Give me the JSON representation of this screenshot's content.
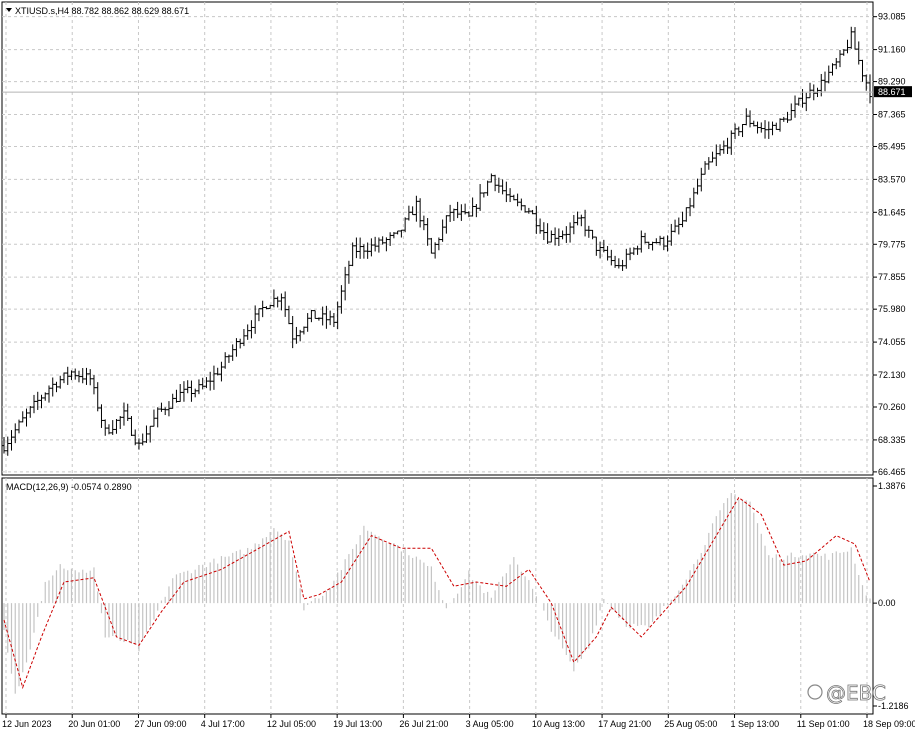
{
  "chart_data": [
    {
      "type": "candlestick",
      "title": "XTIUSD.s,H4  88.782 88.862 88.629 88.671",
      "symbol": "XTIUSD.s,H4",
      "ohlc_last": {
        "open": "88.782",
        "high": "88.862",
        "low": "88.629",
        "close": "88.671"
      },
      "current_price": "88.671",
      "ylim": [
        66.4,
        93.3
      ],
      "y_ticks": [
        "93.085",
        "91.160",
        "89.290",
        "87.365",
        "85.495",
        "83.570",
        "81.645",
        "79.775",
        "77.855",
        "75.980",
        "74.055",
        "72.130",
        "70.260",
        "68.335",
        "66.465"
      ],
      "x_ticks": [
        "12 Jun 2023",
        "20 Jun 01:00",
        "27 Jun 09:00",
        "4 Jul 17:00",
        "12 Jul 05:00",
        "19 Jul 13:00",
        "26 Jul 21:00",
        "3 Aug 05:00",
        "10 Aug 13:00",
        "17 Aug 21:00",
        "25 Aug 05:00",
        "1 Sep 13:00",
        "11 Sep 01:00",
        "18 Sep 09:00"
      ],
      "close_path": [
        {
          "i": 0,
          "v": 68.0
        },
        {
          "i": 6,
          "v": 69.8
        },
        {
          "i": 12,
          "v": 71.4
        },
        {
          "i": 18,
          "v": 72.3
        },
        {
          "i": 23,
          "v": 71.9
        },
        {
          "i": 27,
          "v": 68.8
        },
        {
          "i": 32,
          "v": 69.8
        },
        {
          "i": 36,
          "v": 68.0
        },
        {
          "i": 41,
          "v": 69.9
        },
        {
          "i": 47,
          "v": 71.0
        },
        {
          "i": 53,
          "v": 71.4
        },
        {
          "i": 58,
          "v": 72.6
        },
        {
          "i": 64,
          "v": 74.6
        },
        {
          "i": 70,
          "v": 76.3
        },
        {
          "i": 74,
          "v": 76.8
        },
        {
          "i": 77,
          "v": 74.4
        },
        {
          "i": 82,
          "v": 75.6
        },
        {
          "i": 88,
          "v": 75.3
        },
        {
          "i": 93,
          "v": 79.4
        },
        {
          "i": 99,
          "v": 79.7
        },
        {
          "i": 105,
          "v": 80.3
        },
        {
          "i": 110,
          "v": 82.1
        },
        {
          "i": 114,
          "v": 79.2
        },
        {
          "i": 119,
          "v": 81.7
        },
        {
          "i": 124,
          "v": 81.3
        },
        {
          "i": 130,
          "v": 83.8
        },
        {
          "i": 135,
          "v": 82.3
        },
        {
          "i": 140,
          "v": 81.8
        },
        {
          "i": 145,
          "v": 80.2
        },
        {
          "i": 150,
          "v": 80.5
        },
        {
          "i": 154,
          "v": 81.2
        },
        {
          "i": 158,
          "v": 79.6
        },
        {
          "i": 164,
          "v": 78.4
        },
        {
          "i": 170,
          "v": 80.0
        },
        {
          "i": 176,
          "v": 79.9
        },
        {
          "i": 181,
          "v": 81.1
        },
        {
          "i": 187,
          "v": 84.2
        },
        {
          "i": 193,
          "v": 85.7
        },
        {
          "i": 198,
          "v": 87.1
        },
        {
          "i": 203,
          "v": 86.4
        },
        {
          "i": 208,
          "v": 87.0
        },
        {
          "i": 213,
          "v": 88.3
        },
        {
          "i": 218,
          "v": 89.2
        },
        {
          "i": 223,
          "v": 90.6
        },
        {
          "i": 226,
          "v": 91.9
        },
        {
          "i": 229,
          "v": 89.8
        },
        {
          "i": 231,
          "v": 88.7
        }
      ]
    },
    {
      "type": "histogram+line",
      "title": "MACD(12,26,9) -0.0574 0.2890",
      "macd_value": "-0.0574",
      "signal_value": "0.2890",
      "ylim": [
        -1.2186,
        1.3876
      ],
      "y_ticks": [
        "1.3876",
        "0.00",
        "-1.2186"
      ],
      "histogram_path": [
        {
          "i": 0,
          "v": -0.35
        },
        {
          "i": 3,
          "v": -1.1
        },
        {
          "i": 6,
          "v": -0.7
        },
        {
          "i": 11,
          "v": 0.25
        },
        {
          "i": 15,
          "v": 0.45
        },
        {
          "i": 20,
          "v": 0.35
        },
        {
          "i": 24,
          "v": 0.42
        },
        {
          "i": 27,
          "v": -0.4
        },
        {
          "i": 32,
          "v": -0.45
        },
        {
          "i": 36,
          "v": -0.55
        },
        {
          "i": 40,
          "v": -0.2
        },
        {
          "i": 45,
          "v": 0.3
        },
        {
          "i": 53,
          "v": 0.45
        },
        {
          "i": 60,
          "v": 0.55
        },
        {
          "i": 66,
          "v": 0.65
        },
        {
          "i": 72,
          "v": 0.9
        },
        {
          "i": 76,
          "v": 0.75
        },
        {
          "i": 80,
          "v": -0.05
        },
        {
          "i": 86,
          "v": 0.15
        },
        {
          "i": 92,
          "v": 0.55
        },
        {
          "i": 96,
          "v": 0.9
        },
        {
          "i": 102,
          "v": 0.75
        },
        {
          "i": 108,
          "v": 0.6
        },
        {
          "i": 114,
          "v": 0.4
        },
        {
          "i": 118,
          "v": -0.05
        },
        {
          "i": 124,
          "v": 0.35
        },
        {
          "i": 130,
          "v": 0.05
        },
        {
          "i": 136,
          "v": 0.55
        },
        {
          "i": 140,
          "v": 0.25
        },
        {
          "i": 146,
          "v": -0.3
        },
        {
          "i": 152,
          "v": -0.8
        },
        {
          "i": 156,
          "v": -0.5
        },
        {
          "i": 160,
          "v": 0.05
        },
        {
          "i": 166,
          "v": -0.25
        },
        {
          "i": 172,
          "v": -0.3
        },
        {
          "i": 178,
          "v": 0.05
        },
        {
          "i": 184,
          "v": 0.45
        },
        {
          "i": 190,
          "v": 1.0
        },
        {
          "i": 194,
          "v": 1.3
        },
        {
          "i": 199,
          "v": 1.2
        },
        {
          "i": 204,
          "v": 0.55
        },
        {
          "i": 209,
          "v": 0.55
        },
        {
          "i": 214,
          "v": 0.6
        },
        {
          "i": 220,
          "v": 0.55
        },
        {
          "i": 226,
          "v": 0.65
        },
        {
          "i": 229,
          "v": 0.2
        },
        {
          "i": 231,
          "v": 0.05
        }
      ],
      "signal_path": [
        {
          "i": 0,
          "v": -0.2
        },
        {
          "i": 5,
          "v": -1.0
        },
        {
          "i": 10,
          "v": -0.4
        },
        {
          "i": 16,
          "v": 0.25
        },
        {
          "i": 24,
          "v": 0.3
        },
        {
          "i": 30,
          "v": -0.4
        },
        {
          "i": 36,
          "v": -0.5
        },
        {
          "i": 42,
          "v": -0.1
        },
        {
          "i": 48,
          "v": 0.25
        },
        {
          "i": 58,
          "v": 0.4
        },
        {
          "i": 68,
          "v": 0.65
        },
        {
          "i": 76,
          "v": 0.85
        },
        {
          "i": 80,
          "v": 0.05
        },
        {
          "i": 84,
          "v": 0.1
        },
        {
          "i": 90,
          "v": 0.25
        },
        {
          "i": 98,
          "v": 0.8
        },
        {
          "i": 106,
          "v": 0.65
        },
        {
          "i": 114,
          "v": 0.65
        },
        {
          "i": 120,
          "v": 0.2
        },
        {
          "i": 126,
          "v": 0.25
        },
        {
          "i": 134,
          "v": 0.2
        },
        {
          "i": 140,
          "v": 0.4
        },
        {
          "i": 146,
          "v": 0.0
        },
        {
          "i": 152,
          "v": -0.7
        },
        {
          "i": 158,
          "v": -0.4
        },
        {
          "i": 162,
          "v": -0.05
        },
        {
          "i": 170,
          "v": -0.4
        },
        {
          "i": 176,
          "v": -0.1
        },
        {
          "i": 182,
          "v": 0.2
        },
        {
          "i": 190,
          "v": 0.8
        },
        {
          "i": 196,
          "v": 1.25
        },
        {
          "i": 202,
          "v": 1.05
        },
        {
          "i": 208,
          "v": 0.45
        },
        {
          "i": 214,
          "v": 0.5
        },
        {
          "i": 222,
          "v": 0.8
        },
        {
          "i": 227,
          "v": 0.7
        },
        {
          "i": 231,
          "v": 0.25
        }
      ]
    }
  ],
  "colors": {
    "background": "#ffffff",
    "grid": "#c8c8c8",
    "bar": "#000000",
    "histogram": "#c4c4c4",
    "signal": "#cc0000",
    "price_tag": "#000000",
    "price_line": "#b4b4b4"
  },
  "logo_text": "@EBC",
  "logo_icon": "ebc-logo-icon"
}
